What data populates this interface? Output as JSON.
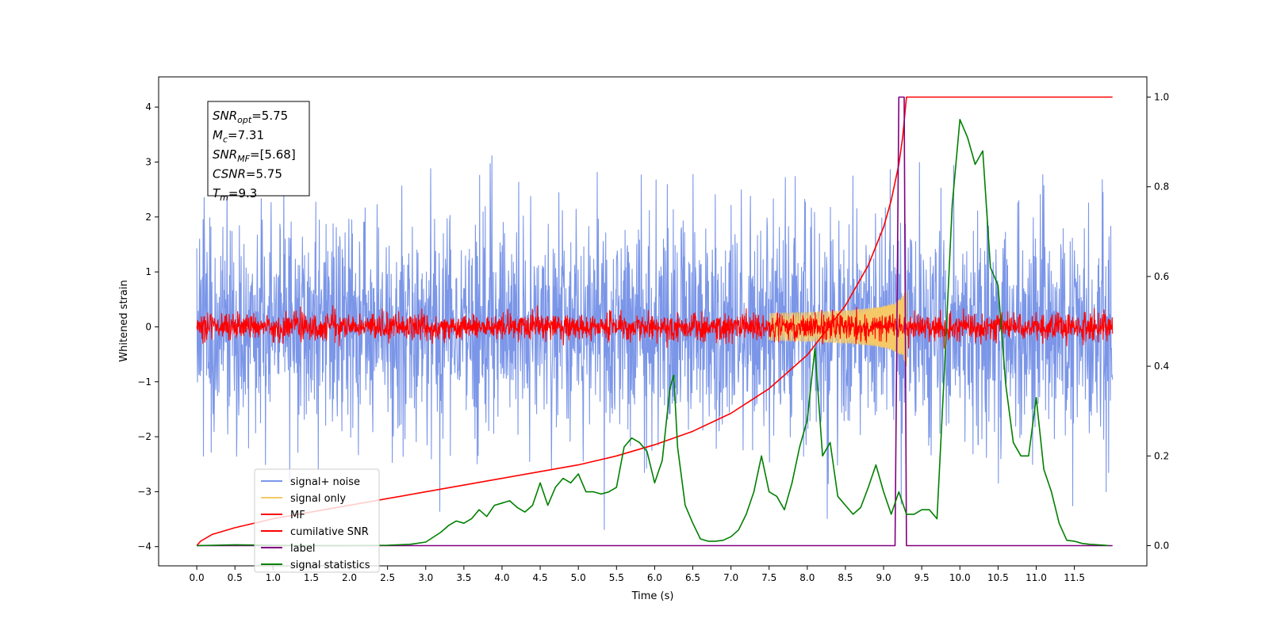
{
  "chart_data": {
    "type": "line",
    "xlabel": "Time (s)",
    "ylabel": "Whitened strain",
    "xlim": [
      -0.5,
      12.45
    ],
    "ylim": [
      -4.35,
      4.55
    ],
    "y2lim": [
      -0.045,
      1.045
    ],
    "x_ticks": [
      0.0,
      0.5,
      1.0,
      1.5,
      2.0,
      2.5,
      3.0,
      3.5,
      4.0,
      4.5,
      5.0,
      5.5,
      6.0,
      6.5,
      7.0,
      7.5,
      8.0,
      8.5,
      9.0,
      9.5,
      10.0,
      10.5,
      11.0,
      11.5
    ],
    "x_tick_labels": [
      "0.0",
      "0.5",
      "1.0",
      "1.5",
      "2.0",
      "2.5",
      "3.0",
      "3.5",
      "4.0",
      "4.5",
      "5.0",
      "5.5",
      "6.0",
      "6.5",
      "7.0",
      "7.5",
      "8.0",
      "8.5",
      "9.0",
      "9.5",
      "10.0",
      "10.5",
      "11.0",
      "11.5"
    ],
    "y_ticks": [
      -4,
      -3,
      -2,
      -1,
      0,
      1,
      2,
      3,
      4
    ],
    "y_tick_labels": [
      "−4",
      "−3",
      "−2",
      "−1",
      "0",
      "1",
      "2",
      "3",
      "4"
    ],
    "y2_ticks": [
      0.0,
      0.2,
      0.4,
      0.6,
      0.8,
      1.0
    ],
    "y2_tick_labels": [
      "0.0",
      "0.2",
      "0.4",
      "0.6",
      "0.8",
      "1.0"
    ],
    "grid": false,
    "legend_position": "lower-left",
    "legend": [
      {
        "label": "signal+ noise",
        "color": "#7b96e8"
      },
      {
        "label": "signal only",
        "color": "#f5c868"
      },
      {
        "label": "MF",
        "color": "#ff0000"
      },
      {
        "label": "cumilative SNR",
        "color": "#ff0000"
      },
      {
        "label": "label",
        "color": "#800080"
      },
      {
        "label": "signal statistics",
        "color": "#008000"
      }
    ],
    "annotation": [
      {
        "name": "SNR",
        "sub": "opt",
        "value": "=5.75"
      },
      {
        "name": "M",
        "sub": "c",
        "value": "=7.31"
      },
      {
        "name": "SNR",
        "sub": "MF",
        "value": "=[5.68]"
      },
      {
        "name": "CSNR",
        "sub": "",
        "value": "=5.75"
      },
      {
        "name": "T",
        "sub": "m",
        "value": "=9.3"
      }
    ],
    "series": [
      {
        "name": "signal+ noise",
        "axis": "left",
        "kind": "noise",
        "color": "#7b96e8",
        "x_range": [
          0,
          12.0
        ],
        "std": 1.0,
        "peak_abs": 4.1
      },
      {
        "name": "signal only",
        "axis": "left",
        "kind": "chirp",
        "color": "#f5c868",
        "x_range": [
          7.5,
          9.3
        ],
        "amplitude_end": 0.75
      },
      {
        "name": "MF",
        "axis": "left",
        "kind": "noise",
        "color": "#ff0000",
        "x_range": [
          0,
          12.0
        ],
        "std": 0.12,
        "peak_abs": 0.6
      },
      {
        "name": "cumilative SNR",
        "axis": "right",
        "color": "#ff0000",
        "x": [
          0.0,
          0.05,
          0.2,
          0.5,
          1.0,
          1.5,
          2.0,
          2.5,
          3.0,
          3.5,
          4.0,
          4.5,
          5.0,
          5.5,
          6.0,
          6.5,
          7.0,
          7.5,
          8.0,
          8.5,
          8.8,
          9.0,
          9.1,
          9.2,
          9.25,
          9.3,
          12.0
        ],
        "y": [
          0.0,
          0.01,
          0.025,
          0.04,
          0.06,
          0.075,
          0.09,
          0.105,
          0.12,
          0.135,
          0.15,
          0.165,
          0.18,
          0.2,
          0.225,
          0.255,
          0.295,
          0.35,
          0.425,
          0.535,
          0.625,
          0.71,
          0.77,
          0.85,
          0.91,
          1.0,
          1.0
        ]
      },
      {
        "name": "label",
        "axis": "right",
        "color": "#800080",
        "x": [
          0.0,
          9.15,
          9.2,
          9.27,
          9.3,
          12.0
        ],
        "y": [
          0.0,
          0.0,
          1.0,
          1.0,
          0.0,
          0.0
        ]
      },
      {
        "name": "signal statistics",
        "axis": "right",
        "color": "#008000",
        "x": [
          0.0,
          0.5,
          1.0,
          1.5,
          2.0,
          2.5,
          2.8,
          3.0,
          3.2,
          3.3,
          3.4,
          3.5,
          3.6,
          3.7,
          3.8,
          3.9,
          4.0,
          4.1,
          4.2,
          4.3,
          4.4,
          4.5,
          4.6,
          4.7,
          4.8,
          4.9,
          5.0,
          5.1,
          5.2,
          5.3,
          5.4,
          5.5,
          5.6,
          5.7,
          5.8,
          5.9,
          6.0,
          6.1,
          6.2,
          6.25,
          6.3,
          6.4,
          6.5,
          6.6,
          6.7,
          6.8,
          6.9,
          7.0,
          7.1,
          7.2,
          7.3,
          7.4,
          7.5,
          7.6,
          7.7,
          7.8,
          7.9,
          8.0,
          8.1,
          8.2,
          8.3,
          8.4,
          8.5,
          8.6,
          8.7,
          8.8,
          8.9,
          9.0,
          9.1,
          9.2,
          9.3,
          9.4,
          9.5,
          9.6,
          9.7,
          9.8,
          9.9,
          10.0,
          10.1,
          10.2,
          10.3,
          10.4,
          10.5,
          10.6,
          10.7,
          10.8,
          10.9,
          11.0,
          11.1,
          11.2,
          11.3,
          11.4,
          11.5,
          11.6,
          11.7,
          11.8,
          11.9,
          11.95
        ],
        "y": [
          0.0,
          0.002,
          0.001,
          0.0,
          0.0,
          0.001,
          0.003,
          0.008,
          0.03,
          0.045,
          0.055,
          0.05,
          0.06,
          0.08,
          0.065,
          0.09,
          0.095,
          0.1,
          0.085,
          0.075,
          0.09,
          0.14,
          0.09,
          0.13,
          0.15,
          0.14,
          0.16,
          0.12,
          0.12,
          0.115,
          0.12,
          0.13,
          0.22,
          0.24,
          0.23,
          0.21,
          0.14,
          0.19,
          0.35,
          0.38,
          0.22,
          0.09,
          0.05,
          0.015,
          0.01,
          0.01,
          0.012,
          0.02,
          0.035,
          0.07,
          0.12,
          0.2,
          0.12,
          0.11,
          0.08,
          0.14,
          0.22,
          0.28,
          0.44,
          0.2,
          0.23,
          0.11,
          0.09,
          0.07,
          0.085,
          0.13,
          0.18,
          0.12,
          0.07,
          0.12,
          0.07,
          0.07,
          0.08,
          0.08,
          0.06,
          0.4,
          0.76,
          0.95,
          0.91,
          0.85,
          0.88,
          0.62,
          0.58,
          0.36,
          0.23,
          0.2,
          0.2,
          0.33,
          0.17,
          0.12,
          0.05,
          0.012,
          0.01,
          0.005,
          0.003,
          0.002,
          0.001,
          0.0
        ]
      }
    ]
  }
}
